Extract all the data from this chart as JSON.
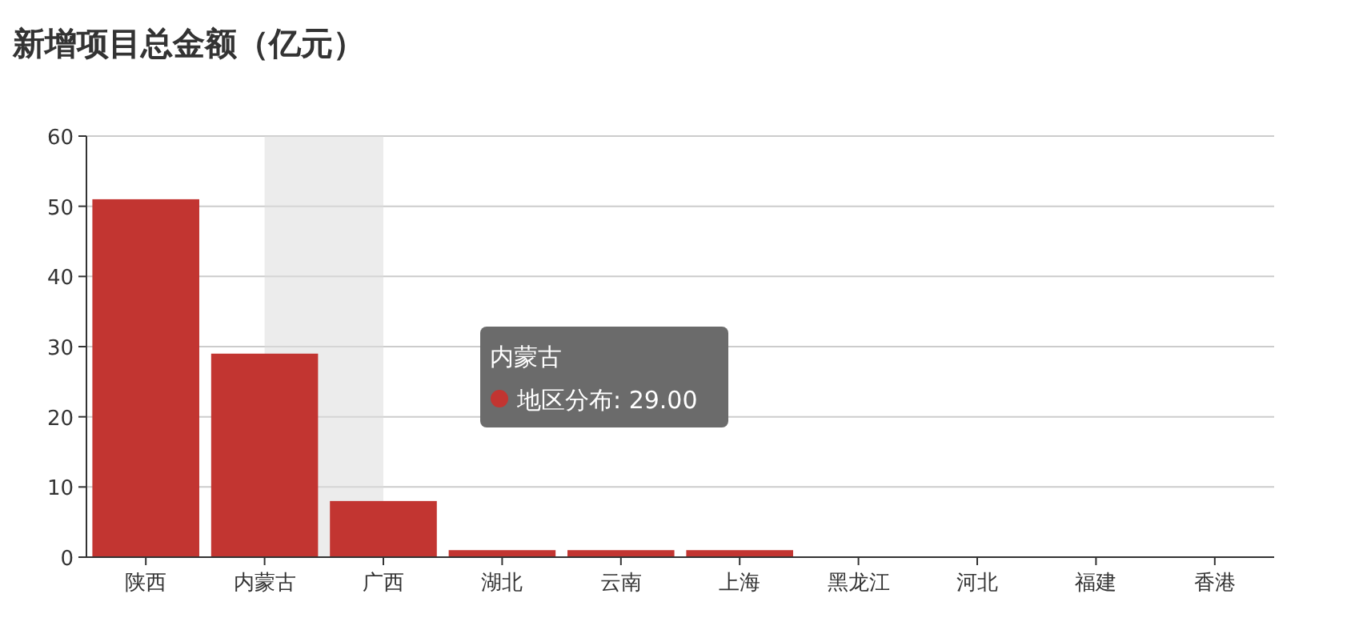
{
  "chart_data": {
    "type": "bar",
    "title": "新增项目总金额（亿元）",
    "categories": [
      "陕西",
      "内蒙古",
      "广西",
      "湖北",
      "云南",
      "上海",
      "黑龙江",
      "河北",
      "福建",
      "香港"
    ],
    "series": [
      {
        "color": "#c23531",
        "values": [
          51,
          29,
          8,
          1,
          1,
          1,
          0,
          0,
          0,
          0
        ]
      }
    ],
    "ylim": [
      0,
      60
    ],
    "yticks": [
      0,
      10,
      20,
      30,
      40,
      50,
      60
    ],
    "grid": "y",
    "bands": [
      {
        "axis": "x",
        "from": "内蒙古",
        "to": "广西",
        "color": "#dddddd"
      }
    ],
    "annotations": [
      "内蒙古",
      "地区分布: 29.00"
    ]
  }
}
